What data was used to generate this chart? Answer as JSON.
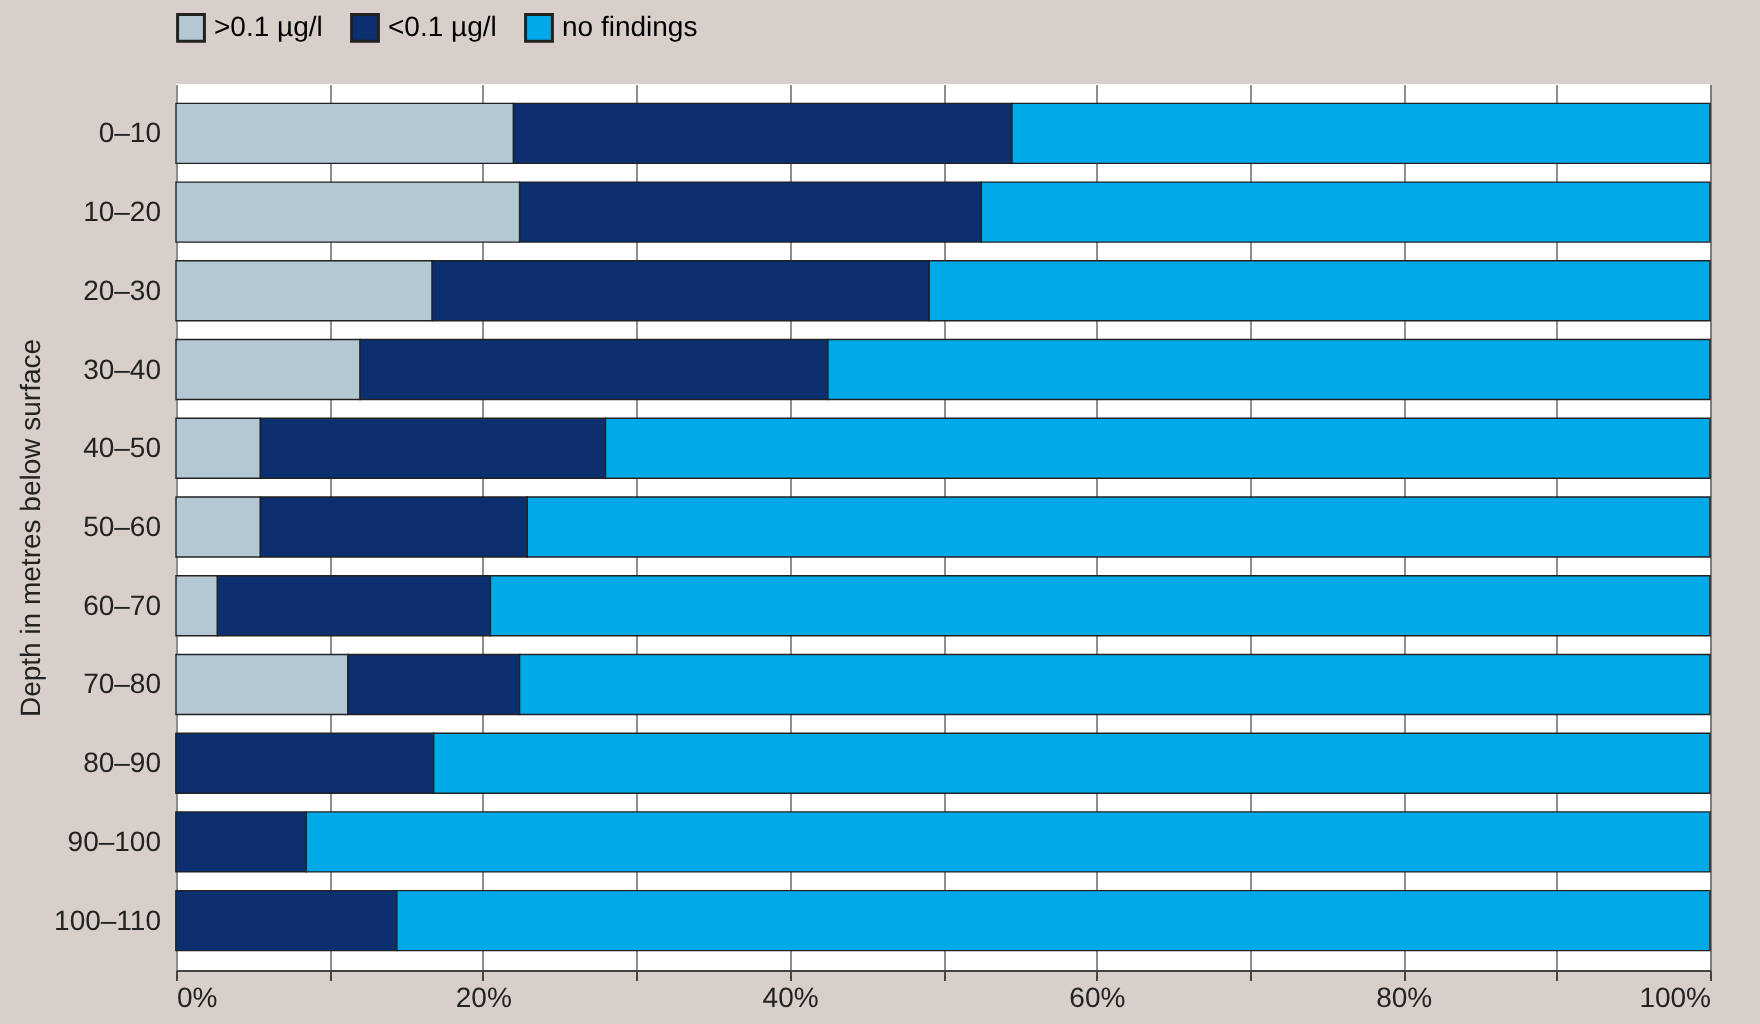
{
  "chart_data": {
    "type": "bar",
    "orientation": "horizontal",
    "stacked": true,
    "ylabel": "Depth in metres below surface",
    "categories": [
      "0–10",
      "10–20",
      "20–30",
      "30–40",
      "40–50",
      "50–60",
      "60–70",
      "70–80",
      "80–90",
      "90–100",
      "100–110"
    ],
    "series": [
      {
        "name": ">0.1 µg/l",
        "color": "#b4c8d3",
        "values": [
          22,
          22.4,
          16.7,
          12,
          5.5,
          5.5,
          2.7,
          11.2,
          0,
          0,
          0
        ]
      },
      {
        "name": "<0.1 µg/l",
        "color": "#0b2f6f",
        "values": [
          32.5,
          30.1,
          32.4,
          30.5,
          22.5,
          17.4,
          17.8,
          11.2,
          16.8,
          8.5,
          14.4
        ]
      },
      {
        "name": "no findings",
        "color": "#00aae9",
        "values": [
          45.5,
          47.5,
          50.9,
          57.5,
          72,
          77.1,
          79.5,
          77.6,
          83.2,
          91.5,
          85.6
        ]
      }
    ],
    "xlim": [
      0,
      100
    ],
    "xticks": [
      {
        "value": 0,
        "label": "0%"
      },
      {
        "value": 10,
        "label": null
      },
      {
        "value": 20,
        "label": "20%"
      },
      {
        "value": 30,
        "label": null
      },
      {
        "value": 40,
        "label": "40%"
      },
      {
        "value": 50,
        "label": null
      },
      {
        "value": 60,
        "label": "60%"
      },
      {
        "value": 70,
        "label": null
      },
      {
        "value": 80,
        "label": "80%"
      },
      {
        "value": 90,
        "label": null
      },
      {
        "value": 100,
        "label": "100%"
      }
    ],
    "grid": "x",
    "legend": "top"
  }
}
